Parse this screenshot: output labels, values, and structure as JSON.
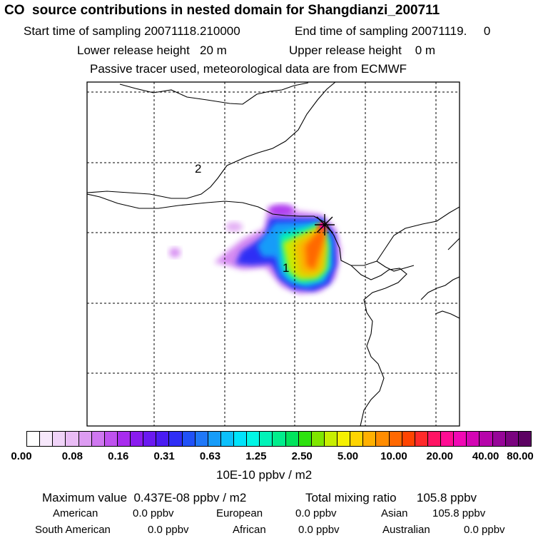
{
  "header": {
    "title": "CO  source contributions in nested domain for Shangdianzi_200711",
    "start_label": "Start time of sampling 20071118.210000",
    "end_label": "End time of sampling 20071119.     0",
    "lower_label": "Lower release height   20 m",
    "upper_label": "Upper release height    0 m",
    "tracer_label": "Passive tracer used, meteorological data are from ECMWF"
  },
  "map": {
    "region_labels": [
      "2",
      "1"
    ],
    "marker": "Shangdianzi station"
  },
  "legend": {
    "ticks": [
      "0.00",
      "0.08",
      "0.16",
      "0.31",
      "0.63",
      "1.25",
      "2.50",
      "5.00",
      "10.00",
      "20.00",
      "40.00",
      "80.00"
    ],
    "units": "10E-10 ppbv / m2",
    "colors": [
      "#ffffff",
      "#f7e8fb",
      "#f0d3f8",
      "#e9bcf5",
      "#dd9cf2",
      "#cf77f0",
      "#bf52ef",
      "#a82cee",
      "#8a1bef",
      "#6a19f0",
      "#4a1cf2",
      "#2f2ef5",
      "#2051f7",
      "#1f78f8",
      "#169cf9",
      "#0cc0fb",
      "#00e3fb",
      "#00f7e6",
      "#00f3b8",
      "#00ed8c",
      "#00e35c",
      "#2ee10f",
      "#7fe600",
      "#c7ee00",
      "#f5f000",
      "#ffd400",
      "#ffb000",
      "#ff8c00",
      "#ff6800",
      "#ff4400",
      "#ff2a2a",
      "#ff1464",
      "#ff0c93",
      "#f008b4",
      "#d405b4",
      "#b605aa",
      "#960598",
      "#7a037f",
      "#5c0262"
    ]
  },
  "footer": {
    "max_label": "Maximum value  0.437E-08 ppbv / m2",
    "total_label": "Total mixing ratio      105.8 ppbv",
    "regions": [
      {
        "name": "American",
        "value": "0.0 ppbv"
      },
      {
        "name": "European",
        "value": "0.0 ppbv"
      },
      {
        "name": "Asian",
        "value": "105.8 ppbv"
      },
      {
        "name": "South American",
        "value": "0.0 ppbv"
      },
      {
        "name": "African",
        "value": "0.0 ppbv"
      },
      {
        "name": "Australian",
        "value": "0.0 ppbv"
      }
    ]
  }
}
